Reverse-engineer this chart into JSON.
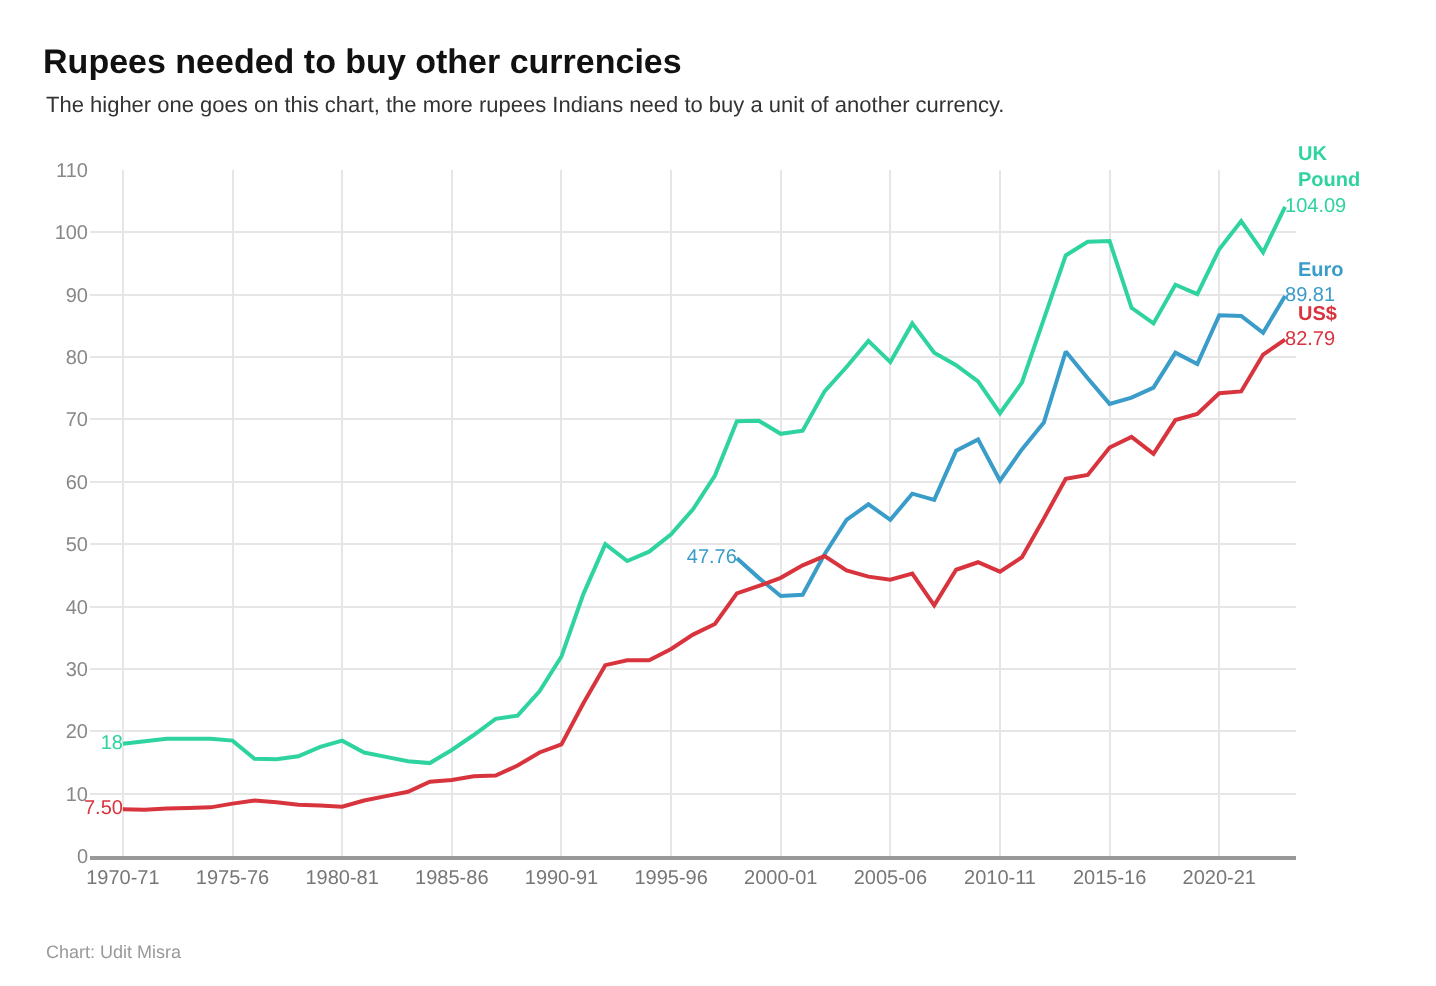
{
  "chart_data": {
    "type": "line",
    "title": "Rupees needed to buy other currencies",
    "subtitle": "The higher one goes on this chart, the more rupees Indians need to buy a unit of another currency.",
    "categories": [
      "1970-71",
      null,
      null,
      null,
      null,
      "1975-76",
      null,
      null,
      null,
      null,
      "1980-81",
      null,
      null,
      null,
      null,
      "1985-86",
      null,
      null,
      null,
      null,
      "1990-91",
      null,
      null,
      null,
      null,
      "1995-96",
      null,
      null,
      null,
      null,
      "2000-01",
      null,
      null,
      null,
      null,
      "2005-06",
      null,
      null,
      null,
      null,
      "2010-11",
      null,
      null,
      null,
      null,
      "2015-16",
      null,
      null,
      null,
      null,
      "2020-21",
      null,
      null,
      null
    ],
    "series": [
      {
        "name": "UK Pound",
        "color": "#2ed3a0",
        "values": [
          18,
          18.4,
          18.8,
          18.8,
          18.8,
          18.5,
          15.6,
          15.5,
          16.0,
          17.5,
          18.5,
          16.6,
          15.9,
          15.2,
          14.9,
          17.0,
          19.4,
          22.0,
          22.5,
          26.4,
          32.0,
          42.0,
          50.0,
          47.3,
          48.8,
          51.6,
          55.6,
          61.0,
          69.7,
          69.8,
          67.7,
          68.2,
          74.5,
          78.4,
          82.6,
          79.2,
          85.4,
          80.7,
          78.7,
          76.1,
          71.0,
          75.9,
          86.1,
          96.3,
          98.5,
          98.6,
          87.9,
          85.4,
          91.6,
          90.1,
          97.3,
          101.8,
          96.8,
          104.09
        ],
        "value_labels": [
          "18",
          null,
          null,
          null,
          null,
          null,
          null,
          null,
          null,
          null,
          null,
          null,
          null,
          null,
          null,
          null,
          null,
          null,
          null,
          null,
          null,
          null,
          null,
          null,
          null,
          null,
          null,
          null,
          null,
          null,
          null,
          null,
          null,
          null,
          null,
          null,
          null,
          null,
          null,
          null,
          null,
          null,
          null,
          null,
          null,
          null,
          null,
          null,
          null,
          null,
          null,
          null,
          null,
          "104.09"
        ]
      },
      {
        "name": "Euro",
        "color": "#3a9cc8",
        "values": [
          null,
          null,
          null,
          null,
          null,
          null,
          null,
          null,
          null,
          null,
          null,
          null,
          null,
          null,
          null,
          null,
          null,
          null,
          null,
          null,
          null,
          null,
          null,
          null,
          null,
          null,
          null,
          null,
          47.76,
          44.6,
          41.7,
          41.9,
          48.4,
          53.9,
          56.4,
          53.9,
          58.1,
          57.1,
          65.0,
          66.8,
          60.2,
          65.2,
          69.5,
          80.9,
          76.6,
          72.5,
          73.5,
          75.1,
          80.7,
          78.9,
          86.7,
          86.6,
          83.9,
          89.81
        ],
        "value_labels": [
          null,
          null,
          null,
          null,
          null,
          null,
          null,
          null,
          null,
          null,
          null,
          null,
          null,
          null,
          null,
          null,
          null,
          null,
          null,
          null,
          null,
          null,
          null,
          null,
          null,
          null,
          null,
          null,
          "47.76",
          null,
          null,
          null,
          null,
          null,
          null,
          null,
          null,
          null,
          null,
          null,
          null,
          null,
          null,
          null,
          null,
          null,
          null,
          null,
          null,
          null,
          null,
          null,
          null,
          "89.81"
        ]
      },
      {
        "name": "US$",
        "color": "#d8343d",
        "values": [
          7.5,
          7.4,
          7.6,
          7.7,
          7.8,
          8.4,
          8.9,
          8.6,
          8.2,
          8.1,
          7.9,
          8.9,
          9.6,
          10.3,
          11.9,
          12.2,
          12.8,
          12.9,
          14.5,
          16.6,
          17.9,
          24.5,
          30.6,
          31.4,
          31.4,
          33.2,
          35.5,
          37.2,
          42.1,
          43.3,
          44.6,
          46.6,
          48.1,
          45.8,
          44.8,
          44.3,
          45.3,
          40.2,
          45.9,
          47.1,
          45.6,
          47.9,
          54.1,
          60.5,
          61.1,
          65.5,
          67.2,
          64.5,
          69.9,
          70.9,
          74.2,
          74.5,
          80.4,
          82.79
        ],
        "value_labels": [
          "7.50",
          null,
          null,
          null,
          null,
          null,
          null,
          null,
          null,
          null,
          null,
          null,
          null,
          null,
          null,
          null,
          null,
          null,
          null,
          null,
          null,
          null,
          null,
          null,
          null,
          null,
          null,
          null,
          null,
          null,
          null,
          null,
          null,
          null,
          null,
          null,
          null,
          null,
          null,
          null,
          null,
          null,
          null,
          null,
          null,
          null,
          null,
          null,
          null,
          null,
          null,
          null,
          null,
          "82.79"
        ]
      }
    ],
    "ylim": [
      0,
      110
    ],
    "yticks": [
      0,
      10,
      20,
      30,
      40,
      50,
      60,
      70,
      80,
      90,
      100,
      110
    ],
    "grid": true,
    "legend": false,
    "marker": "none",
    "line_style": "solid",
    "annotations": [
      "Chart: Udit Misra"
    ]
  }
}
